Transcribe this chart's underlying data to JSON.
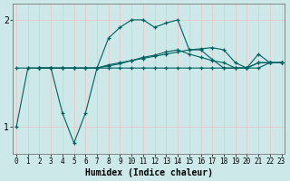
{
  "xlabel": "Humidex (Indice chaleur)",
  "background_color": "#cce8e8",
  "grid_color": "#e8c8c8",
  "line_color": "#006060",
  "x_ticks": [
    0,
    1,
    2,
    3,
    4,
    5,
    6,
    7,
    8,
    9,
    10,
    11,
    12,
    13,
    14,
    15,
    16,
    17,
    18,
    19,
    20,
    21,
    22,
    23
  ],
  "y_ticks": [
    1,
    2
  ],
  "xlim": [
    -0.3,
    23.3
  ],
  "ylim": [
    0.75,
    2.15
  ],
  "series": {
    "line1": [
      1.0,
      1.55,
      1.55,
      1.55,
      1.13,
      0.85,
      1.13,
      1.55,
      1.83,
      1.93,
      2.0,
      2.0,
      1.93,
      1.97,
      2.0,
      1.72,
      1.72,
      1.63,
      1.55,
      1.55,
      1.55,
      1.68,
      1.6,
      1.6
    ],
    "line2": [
      1.55,
      1.55,
      1.55,
      1.55,
      1.55,
      1.55,
      1.55,
      1.55,
      1.55,
      1.55,
      1.55,
      1.55,
      1.55,
      1.55,
      1.55,
      1.55,
      1.55,
      1.55,
      1.55,
      1.55,
      1.55,
      1.55,
      1.6,
      1.6
    ],
    "line3": [
      null,
      null,
      1.55,
      1.55,
      1.55,
      1.55,
      1.55,
      1.55,
      1.58,
      1.6,
      1.62,
      1.65,
      1.67,
      1.7,
      1.72,
      1.68,
      1.65,
      1.62,
      1.6,
      1.55,
      1.55,
      1.6,
      1.6,
      1.6
    ],
    "line4": [
      null,
      null,
      1.55,
      1.55,
      1.55,
      1.55,
      1.55,
      1.55,
      1.57,
      1.59,
      1.62,
      1.64,
      1.66,
      1.68,
      1.7,
      1.72,
      1.73,
      1.74,
      1.72,
      1.6,
      1.55,
      1.6,
      1.6,
      1.6
    ]
  }
}
